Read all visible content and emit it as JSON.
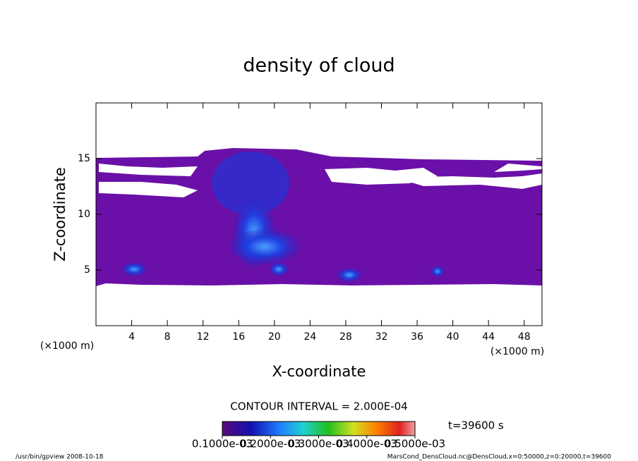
{
  "chart_data": {
    "type": "contour",
    "title": "density of cloud",
    "xlabel": "X-coordinate",
    "ylabel": "Z-coordinate",
    "xunit": "(×1000 m)",
    "yunit": "(×1000 m)",
    "xlim": [
      0,
      50
    ],
    "ylim": [
      0,
      20
    ],
    "xticks": [
      4,
      8,
      12,
      16,
      20,
      24,
      28,
      32,
      36,
      40,
      44,
      48
    ],
    "yticks": [
      5,
      10,
      15
    ],
    "contour_interval": "CONTOUR INTERVAL = 2.000E-04",
    "time_label": "t=39600 s",
    "clim": [
      0.0001,
      0.0005
    ],
    "colorbar_ticks": [
      {
        "value": 0.0001,
        "label": "0.1000e-03"
      },
      {
        "value": 0.0002,
        "label": "0.2000e-03"
      },
      {
        "value": 0.0003,
        "label": "0.3000e-03"
      },
      {
        "value": 0.0004,
        "label": "0.4000e-03"
      },
      {
        "value": 0.0005,
        "label": "0.5000e-03"
      }
    ],
    "footer_left": "/usr/bin/gpview  2008-10-18",
    "footer_right": "MarsCond_DensCloud.nc@DensCloud,x=0:50000,z=0:20000,t=39600"
  }
}
